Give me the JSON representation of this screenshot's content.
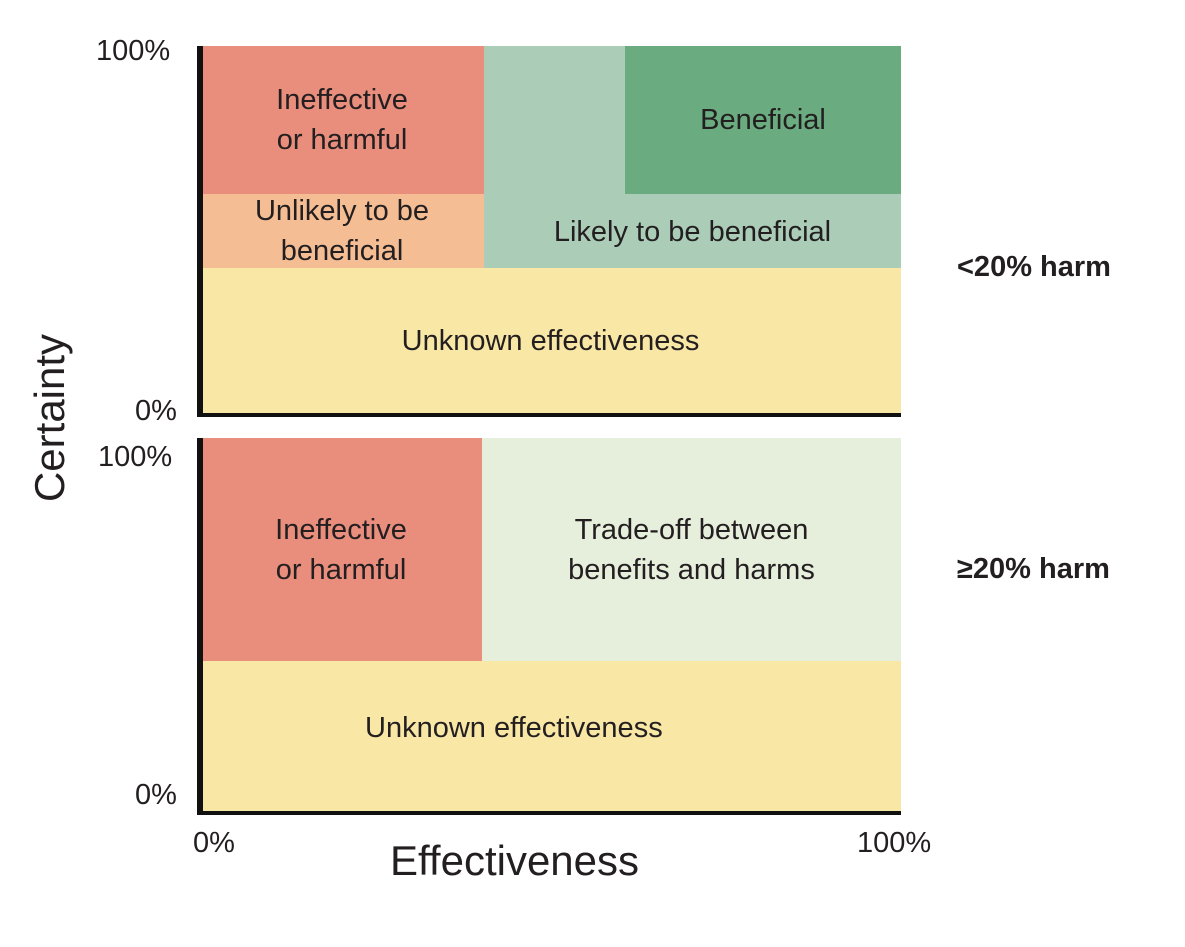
{
  "colors": {
    "ineffective": "#e98e7d",
    "unlikely": "#f5bd94",
    "likely": "#abcdb8",
    "beneficial": "#6aab80",
    "unknown": "#f9e7a6",
    "tradeoff": "#e6eedc",
    "axis": "#111111"
  },
  "axes": {
    "y_title": "Certainty",
    "x_title": "Effectiveness",
    "top_y_max": "100%",
    "top_y_min": "0%",
    "bottom_y_max": "100%",
    "bottom_y_min": "0%",
    "x_min": "0%",
    "x_max": "100%"
  },
  "top_panel": {
    "harm_label": "<20%  harm",
    "ineffective": "Ineffective\nor harmful",
    "unlikely": "Unlikely to be\nbeneficial",
    "likely": "Likely to be beneficial",
    "beneficial": "Beneficial",
    "unknown": "Unknown effectiveness"
  },
  "bottom_panel": {
    "harm_label": "≥20%  harm",
    "ineffective": "Ineffective\nor harmful",
    "tradeoff": "Trade-off between\nbenefits and harms",
    "unknown": "Unknown effectiveness"
  }
}
